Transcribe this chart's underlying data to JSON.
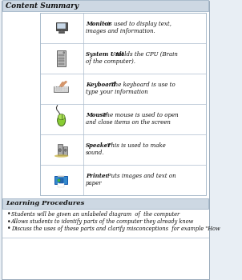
{
  "title": "Content Summary",
  "bg_color": "#e8eef4",
  "page_bg": "#ffffff",
  "header_bg": "#cdd8e3",
  "table_bg": "#ffffff",
  "border_color": "#aabbcc",
  "font_color": "#111111",
  "items": [
    {
      "bold_text": "Monitor",
      "description": " - is used to display text,\nimages and information."
    },
    {
      "bold_text": "System Unit",
      "description": " - Holds the CPU (Brain\nof the computer)."
    },
    {
      "bold_text": "Keyboard",
      "description": "  - The keyboard is use to\ntype your information"
    },
    {
      "bold_text": "Mouse",
      "description": " - The mouse is used to open\nand close items on the screen"
    },
    {
      "bold_text": "Speaker",
      "description": " - This is used to make\nsound."
    },
    {
      "bold_text": "Printer",
      "description": " - Puts images and text on\npaper"
    }
  ],
  "procedures_title": "Learning Procedures",
  "procedures": [
    "Students will be given an unlabeled diagram  of  the computer",
    "Allows students to identify parts of the computer they already know",
    "Discuss the uses of these parts and clarify misconceptions  for example \"How"
  ]
}
